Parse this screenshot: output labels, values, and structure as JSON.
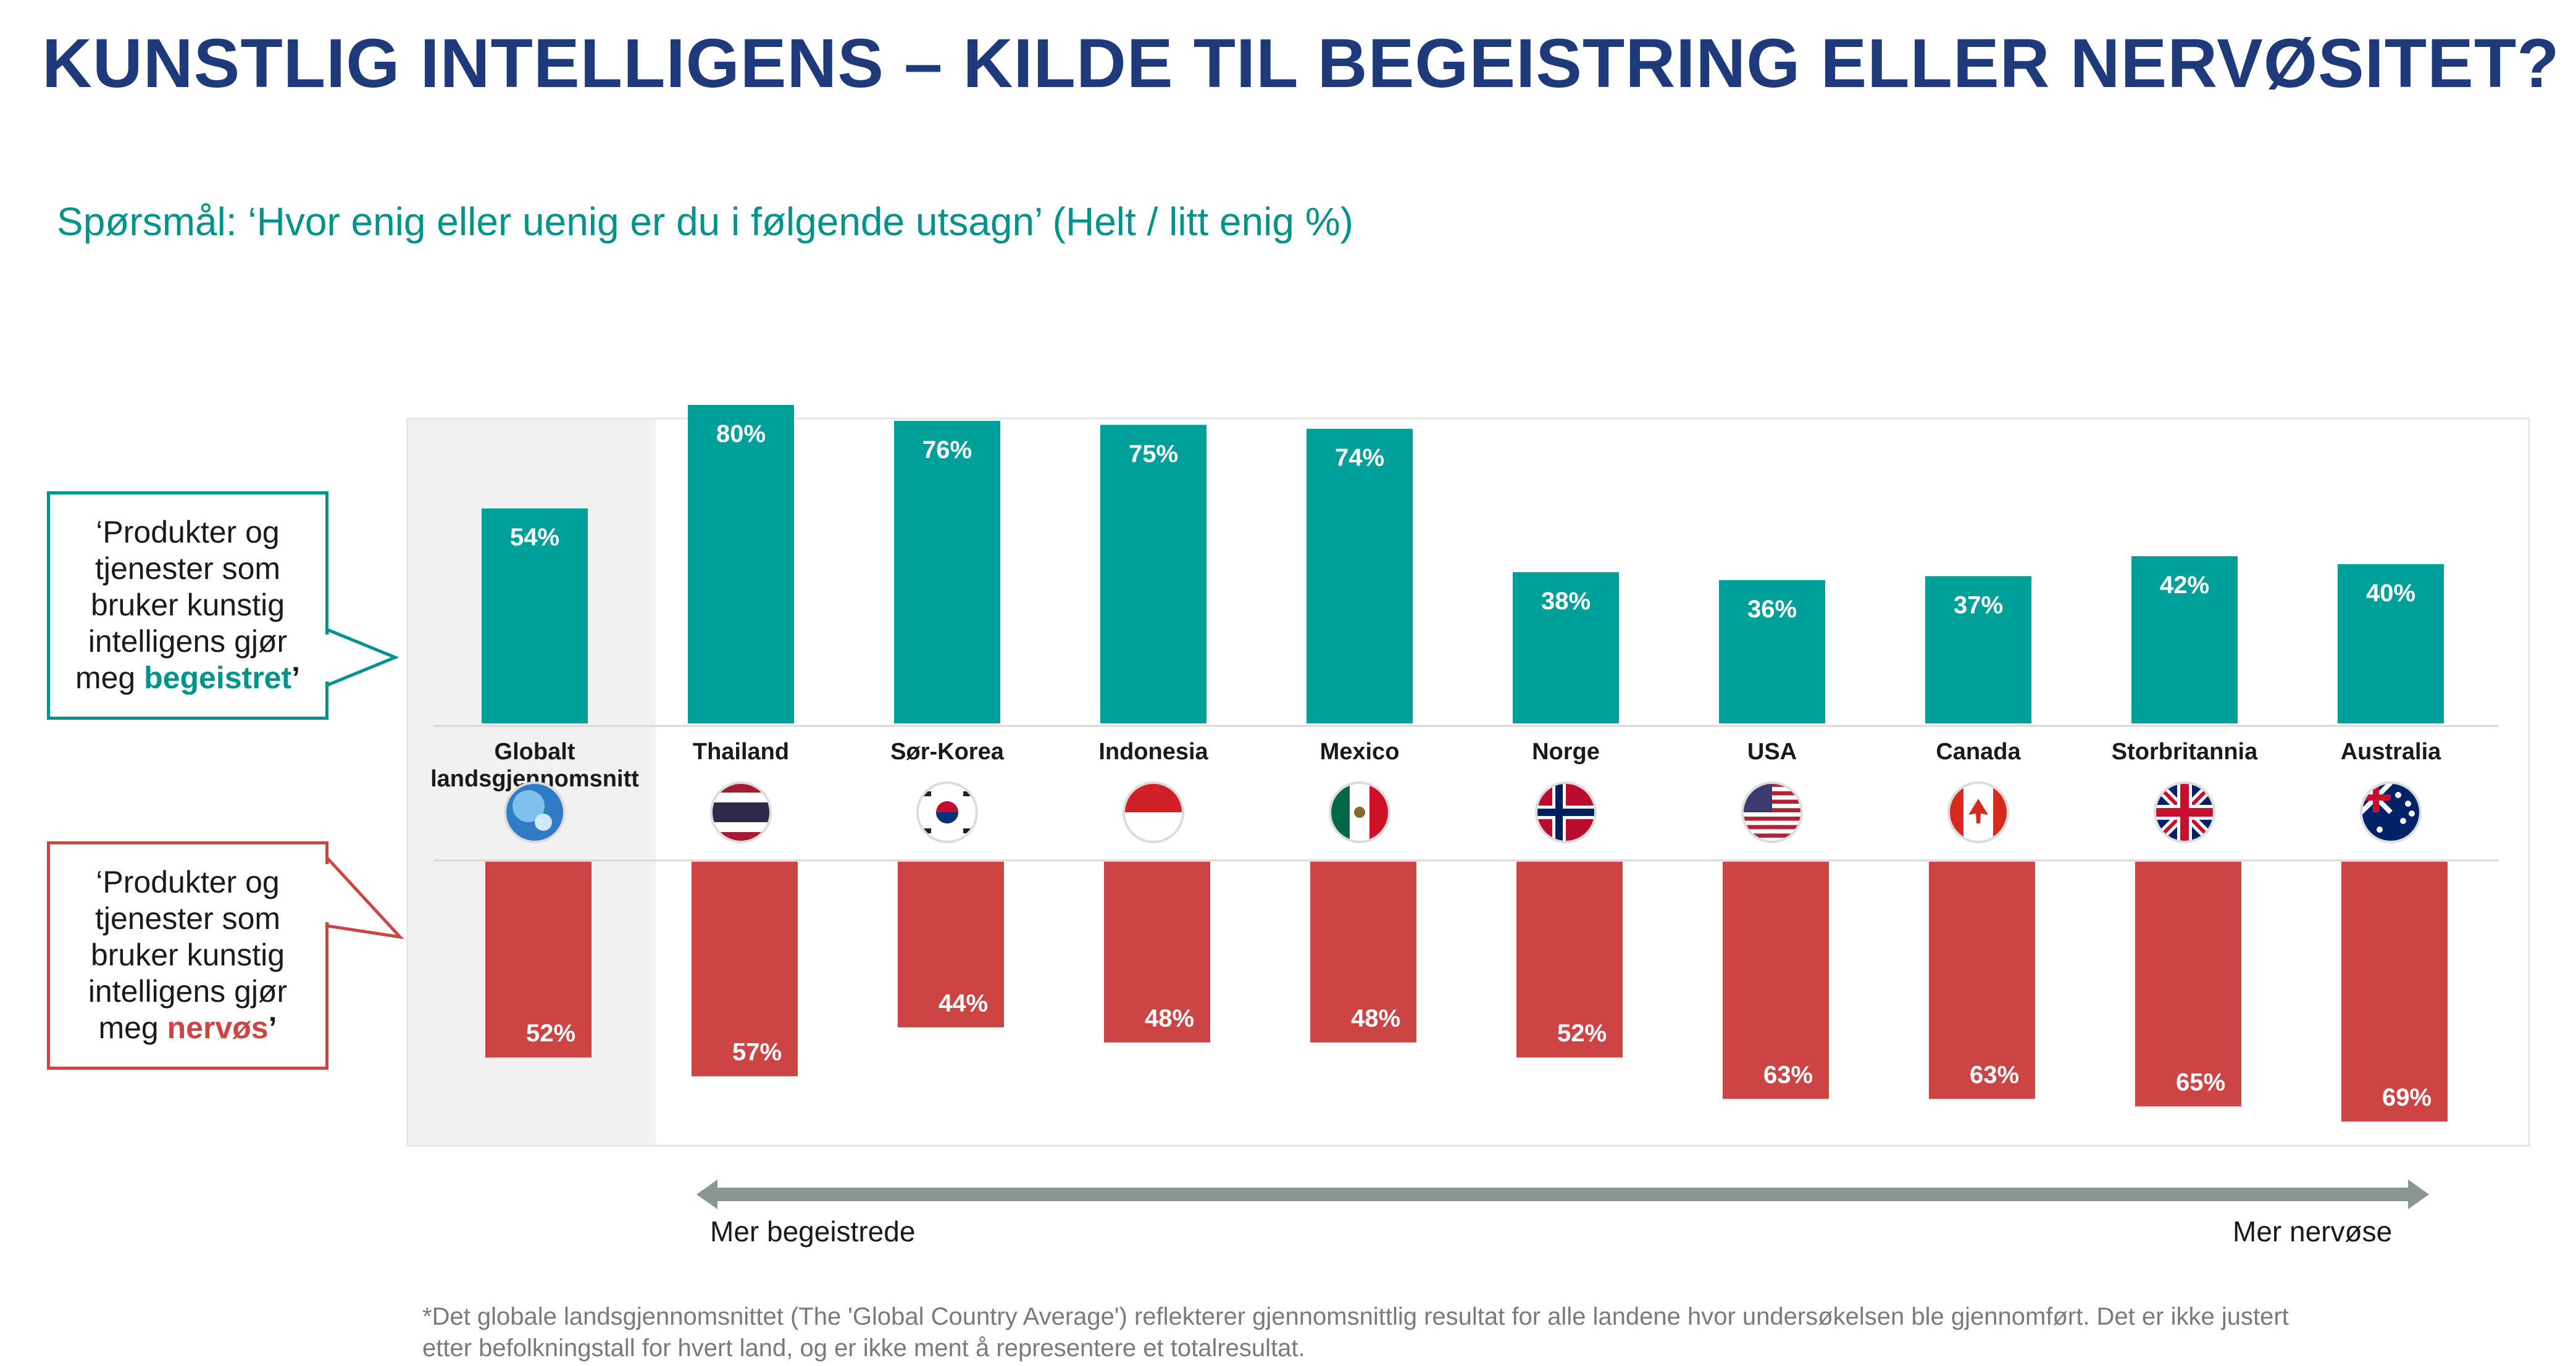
{
  "header": {
    "title": "KUNSTLIG INTELLIGENS – KILDE TIL BEGEISTRING ELLER NERVØSITET?",
    "subtitle": "Spørsmål: ‘Hvor enig eller uenig er du i følgende utsagn’ (Helt / litt enig %)"
  },
  "callouts": {
    "enthused": {
      "text": "‘Produkter og tjenester som bruker kunstig intelligens gjør meg ",
      "highlight": "begeistret",
      "quote": "’"
    },
    "nervous": {
      "text": "‘Produkter og tjenester som bruker kunstig intelligens gjør meg ",
      "highlight": "nervøs",
      "quote": "’"
    }
  },
  "arrow": {
    "left_label": "Mer begeistrede",
    "right_label": "Mer nervøse",
    "color": "#8a9690"
  },
  "footnote": "*Det globale landsgjennomsnittet (The 'Global Country Average') reflekterer gjennomsnittlig resultat for alle landene hvor undersøkelsen ble gjennomført. Det er ikke justert etter befolkningstall for hvert land, og er ikke ment å representere et totalresultat.",
  "colors": {
    "enthused": "#00a09a",
    "nervous": "#cc4444",
    "highlight_panel": "#f1f1f1"
  },
  "chart_data": {
    "type": "bar",
    "categories": [
      "Globalt landsgjennomsnitt",
      "Thailand",
      "Sør-Korea",
      "Indonesia",
      "Mexico",
      "Norge",
      "USA",
      "Canada",
      "Storbritannia",
      "Australia"
    ],
    "flags": [
      "globe-icon",
      "thailand-flag-icon",
      "south-korea-flag-icon",
      "indonesia-flag-icon",
      "mexico-flag-icon",
      "norway-flag-icon",
      "usa-flag-icon",
      "canada-flag-icon",
      "uk-flag-icon",
      "australia-flag-icon"
    ],
    "series": [
      {
        "values": [
          54,
          80,
          76,
          75,
          74,
          38,
          36,
          37,
          42,
          40
        ],
        "labels": [
          "54%",
          "80%",
          "76%",
          "75%",
          "74%",
          "38%",
          "36%",
          "37%",
          "42%",
          "40%"
        ],
        "direction": "up"
      },
      {
        "values": [
          52,
          57,
          44,
          48,
          48,
          52,
          63,
          63,
          65,
          69
        ],
        "labels": [
          "52%",
          "57%",
          "44%",
          "48%",
          "48%",
          "52%",
          "63%",
          "63%",
          "65%",
          "69%"
        ],
        "direction": "down"
      }
    ],
    "ylim": [
      0,
      100
    ]
  }
}
